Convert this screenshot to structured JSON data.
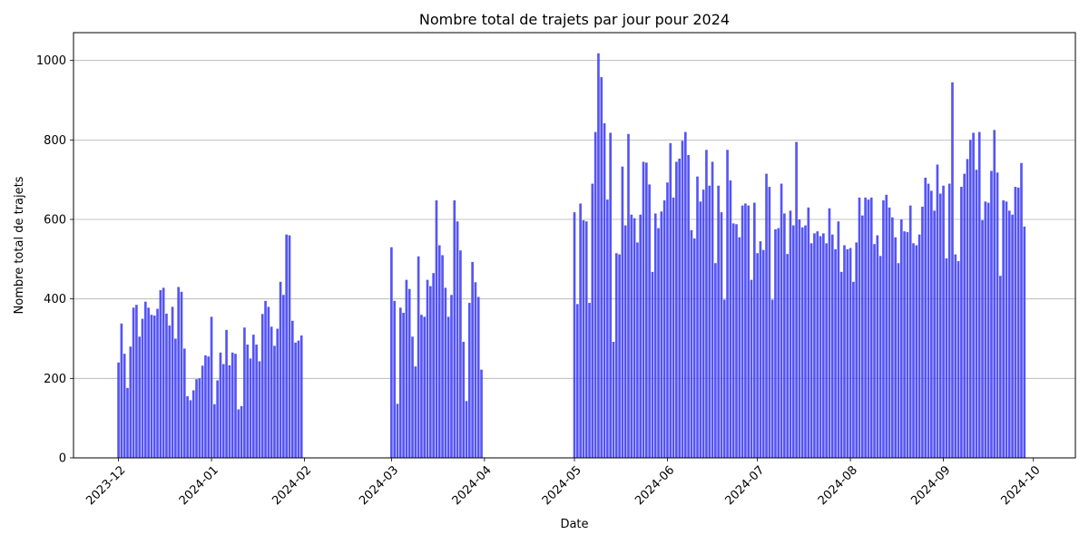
{
  "chart_data": {
    "type": "bar",
    "title": "Nombre total de trajets par jour pour 2024",
    "xlabel": "Date",
    "ylabel": "Nombre total de trajets",
    "ylim": [
      0,
      1070
    ],
    "y_ticks": [
      0,
      200,
      400,
      600,
      800,
      1000
    ],
    "x_ticks": [
      "2023-12",
      "2024-01",
      "2024-02",
      "2024-03",
      "2024-04",
      "2024-05",
      "2024-06",
      "2024-07",
      "2024-08",
      "2024-09",
      "2024-10"
    ],
    "x_range": [
      "2023-11-16",
      "2024-10-15"
    ],
    "grid": "horizontal",
    "bar_color": "#4b4bf5",
    "series": [
      {
        "start_date": "2023-12-01",
        "values": [
          240,
          338,
          262,
          176,
          280,
          378,
          385,
          305,
          350,
          393,
          378,
          360,
          358,
          375,
          422,
          428,
          363,
          333,
          380,
          300,
          430,
          418,
          275,
          155,
          145,
          170,
          198,
          200,
          232,
          258,
          255,
          355,
          135,
          195,
          265,
          236,
          322,
          233,
          265,
          262,
          122,
          130,
          328,
          285,
          250,
          310,
          285,
          243,
          362,
          395,
          380,
          330,
          282,
          325,
          443,
          410,
          562,
          560,
          345,
          290,
          295,
          308
        ]
      },
      {
        "start_date": "2024-03-01",
        "values": [
          530,
          395,
          136,
          378,
          365,
          448,
          425,
          305,
          230,
          507,
          360,
          355,
          448,
          432,
          465,
          648,
          535,
          510,
          428,
          355,
          410,
          648,
          595,
          522,
          292,
          143,
          390,
          493,
          442,
          405,
          222
        ]
      },
      {
        "start_date": "2024-05-01",
        "values": [
          618,
          387,
          640,
          598,
          595,
          390,
          690,
          820,
          1018,
          958,
          842,
          650,
          818,
          292,
          515,
          512,
          733,
          585,
          815,
          612,
          603,
          542,
          612,
          745,
          743,
          688,
          468,
          615,
          578,
          620,
          648,
          693,
          792,
          655,
          745,
          753,
          798,
          820,
          762,
          573,
          552,
          708,
          645,
          675,
          775,
          685,
          745,
          490,
          685,
          618,
          398,
          775,
          698,
          590,
          588,
          555,
          635,
          640,
          635,
          448,
          642,
          515,
          545,
          523,
          715,
          682,
          398,
          575,
          578,
          690,
          615,
          513,
          622,
          585,
          795,
          600,
          580,
          585,
          630,
          540,
          565,
          570,
          558,
          565,
          540,
          628,
          562,
          525,
          595,
          468,
          535,
          525,
          528,
          443,
          542,
          655,
          610,
          655,
          650,
          655,
          538,
          560,
          508,
          648,
          662,
          630,
          605,
          555,
          490,
          600,
          570,
          568,
          635,
          540,
          535,
          562,
          632,
          705,
          690,
          672,
          622,
          738,
          665,
          685,
          502,
          690,
          945,
          512,
          495,
          682,
          715,
          752,
          800,
          818,
          725,
          820,
          598,
          645,
          642,
          722,
          825,
          718,
          458,
          648,
          645,
          622,
          612,
          682,
          680,
          742,
          582
        ]
      }
    ]
  }
}
